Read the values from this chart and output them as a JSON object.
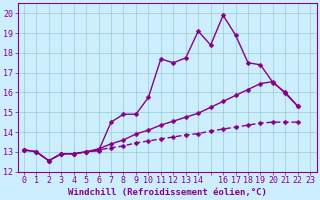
{
  "xlabel": "Windchill (Refroidissement éolien,°C)",
  "bg_color": "#cceeff",
  "line_color": "#880088",
  "grid_color": "#99cccc",
  "xlim": [
    -0.5,
    23.5
  ],
  "ylim": [
    12,
    20.5
  ],
  "yticks": [
    12,
    13,
    14,
    15,
    16,
    17,
    18,
    19,
    20
  ],
  "xtick_positions": [
    0,
    1,
    2,
    3,
    4,
    5,
    6,
    7,
    8,
    9,
    10,
    11,
    12,
    13,
    14,
    15,
    16,
    17,
    18,
    19,
    20,
    21,
    22,
    23
  ],
  "xtick_labels": [
    "0",
    "1",
    "2",
    "3",
    "4",
    "5",
    "6",
    "7",
    "8",
    "9",
    "10",
    "11",
    "12",
    "13",
    "14",
    "",
    "16",
    "17",
    "18",
    "19",
    "20",
    "21",
    "22",
    "23"
  ],
  "line1_x": [
    0,
    1,
    2,
    3,
    4,
    5,
    6,
    7,
    8,
    9,
    10,
    11,
    12,
    13,
    14,
    15,
    16,
    17,
    18,
    19,
    20,
    21,
    22
  ],
  "line1_y": [
    13.1,
    13.0,
    12.55,
    12.9,
    12.9,
    13.0,
    13.05,
    14.5,
    14.9,
    14.9,
    15.75,
    17.7,
    17.5,
    17.75,
    19.1,
    18.4,
    19.9,
    18.9,
    17.5,
    17.4,
    16.5,
    16.0,
    15.3
  ],
  "line2_x": [
    0,
    1,
    2,
    3,
    4,
    5,
    6,
    7,
    8,
    9,
    10,
    11,
    12,
    13,
    14,
    15,
    16,
    17,
    18,
    19,
    20,
    21,
    22
  ],
  "line2_y": [
    13.1,
    13.0,
    12.55,
    12.9,
    12.9,
    13.0,
    13.15,
    13.4,
    13.6,
    13.9,
    14.1,
    14.35,
    14.55,
    14.75,
    14.95,
    15.25,
    15.55,
    15.85,
    16.15,
    16.45,
    16.55,
    15.95,
    15.3
  ],
  "line3_x": [
    0,
    1,
    2,
    3,
    4,
    5,
    6,
    7,
    8,
    9,
    10,
    11,
    12,
    13,
    14,
    15,
    16,
    17,
    18,
    19,
    20,
    21,
    22
  ],
  "line3_y": [
    13.1,
    13.0,
    12.55,
    12.9,
    12.9,
    13.0,
    13.1,
    13.2,
    13.3,
    13.45,
    13.55,
    13.65,
    13.75,
    13.85,
    13.92,
    14.05,
    14.15,
    14.25,
    14.35,
    14.45,
    14.5,
    14.5,
    14.5
  ],
  "markersize": 2.5,
  "linewidth": 1.0,
  "xlabel_fontsize": 6.5,
  "tick_fontsize": 6,
  "tick_color": "#880088",
  "axis_color": "#880088"
}
